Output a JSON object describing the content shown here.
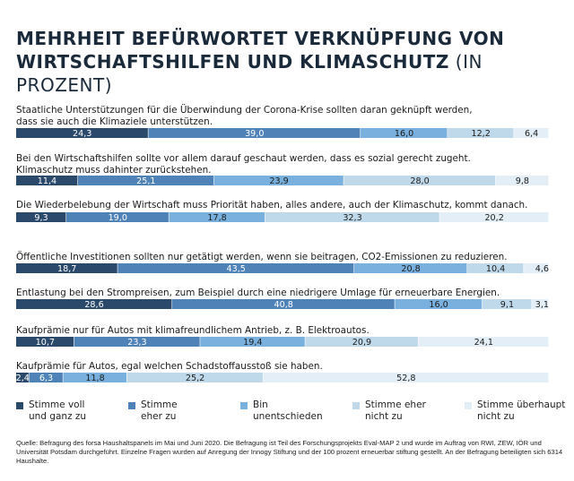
{
  "title": {
    "line1": "MEHRHEIT BEFÜRWORTET VERKNÜPFUNG VON",
    "line2_bold": "WIRTSCHAFTSHILFEN UND KLIMASCHUTZ",
    "line2_thin": " (IN PROZENT)"
  },
  "colors": [
    "#2b4a6b",
    "#4f82b7",
    "#79b0dd",
    "#bfd9ea",
    "#e3eef6"
  ],
  "legend": [
    {
      "label1": "Stimme voll",
      "label2": "und ganz zu"
    },
    {
      "label1": "Stimme",
      "label2": "eher zu"
    },
    {
      "label1": "Bin",
      "label2": "unentschieden"
    },
    {
      "label1": "Stimme eher",
      "label2": "nicht zu"
    },
    {
      "label1": "Stimme überhaupt",
      "label2": "nicht zu"
    }
  ],
  "footer": "Quelle: Befragung des forsa Haushaltspanels im Mai und Juni 2020. Die Befragung ist Teil des Forschungsprojekts Eval-MAP 2 und wurde im Auftrag von RWI, ZEW, IÖR und Universität Potsdam durchgeführt. Einzelne Fragen wurden auf Anregung der Innogy Stiftung und der 100 prozent erneuerbar stiftung gestellt. An der Befragung beteiligten sich 6314 Haushalte.",
  "chart_data": {
    "type": "bar",
    "stacked": true,
    "orientation": "horizontal",
    "categories": [
      [
        "Staatliche Unterstützungen für die Überwindung der Corona-Krise sollten daran geknüpft werden,",
        "dass sie auch die Klimaziele unterstützen."
      ],
      [
        "Bei den Wirtschaftshilfen sollte vor allem darauf geschaut werden, dass es sozial gerecht zugeht.",
        "Klimaschutz muss dahinter zurückstehen."
      ],
      [
        "Die Wiederbelebung der Wirtschaft muss Priorität haben, alles andere, auch der Klimaschutz, kommt danach."
      ],
      [
        "Öffentliche Investitionen sollten nur getätigt werden, wenn sie beitragen, CO2-Emissionen zu reduzieren."
      ],
      [
        "Entlastung bei den Strompreisen, zum Beispiel durch eine niedrigere Umlage für erneuerbare Energien."
      ],
      [
        "Kaufprämie nur für Autos mit klimafreundlichem Antrieb, z. B. Elektroautos."
      ],
      [
        "Kaufprämie für Autos, egal welchen Schadstoffausstoß sie haben."
      ]
    ],
    "series": [
      {
        "name": "Stimme voll und ganz zu",
        "values": [
          24.3,
          11.4,
          9.3,
          18.7,
          28.6,
          10.7,
          2.4
        ]
      },
      {
        "name": "Stimme eher zu",
        "values": [
          39.0,
          25.1,
          19.0,
          43.5,
          40.8,
          23.3,
          6.3
        ]
      },
      {
        "name": "Bin unentschieden",
        "values": [
          16.0,
          23.9,
          17.8,
          20.8,
          16.0,
          19.4,
          11.8
        ]
      },
      {
        "name": "Stimme eher nicht zu",
        "values": [
          12.2,
          28.0,
          32.3,
          10.4,
          9.1,
          20.9,
          25.2
        ]
      },
      {
        "name": "Stimme überhaupt nicht zu",
        "values": [
          6.4,
          9.8,
          20.2,
          4.6,
          3.1,
          24.1,
          52.8
        ]
      }
    ],
    "labels": [
      [
        "24,3",
        "39,0",
        "16,0",
        "12,2",
        "6,4"
      ],
      [
        "11,4",
        "25,1",
        "23,9",
        "28,0",
        "9,8"
      ],
      [
        "9,3",
        "19,0",
        "17,8",
        "32,3",
        "20,2"
      ],
      [
        "18,7",
        "43,5",
        "20,8",
        "10,4",
        "4,6"
      ],
      [
        "28,6",
        "40,8",
        "16,0",
        "9,1",
        "3,1"
      ],
      [
        "10,7",
        "23,3",
        "19,4",
        "20,9",
        "24,1"
      ],
      [
        "2,4",
        "6,3",
        "11,8",
        "25,2",
        "52,8"
      ]
    ]
  }
}
